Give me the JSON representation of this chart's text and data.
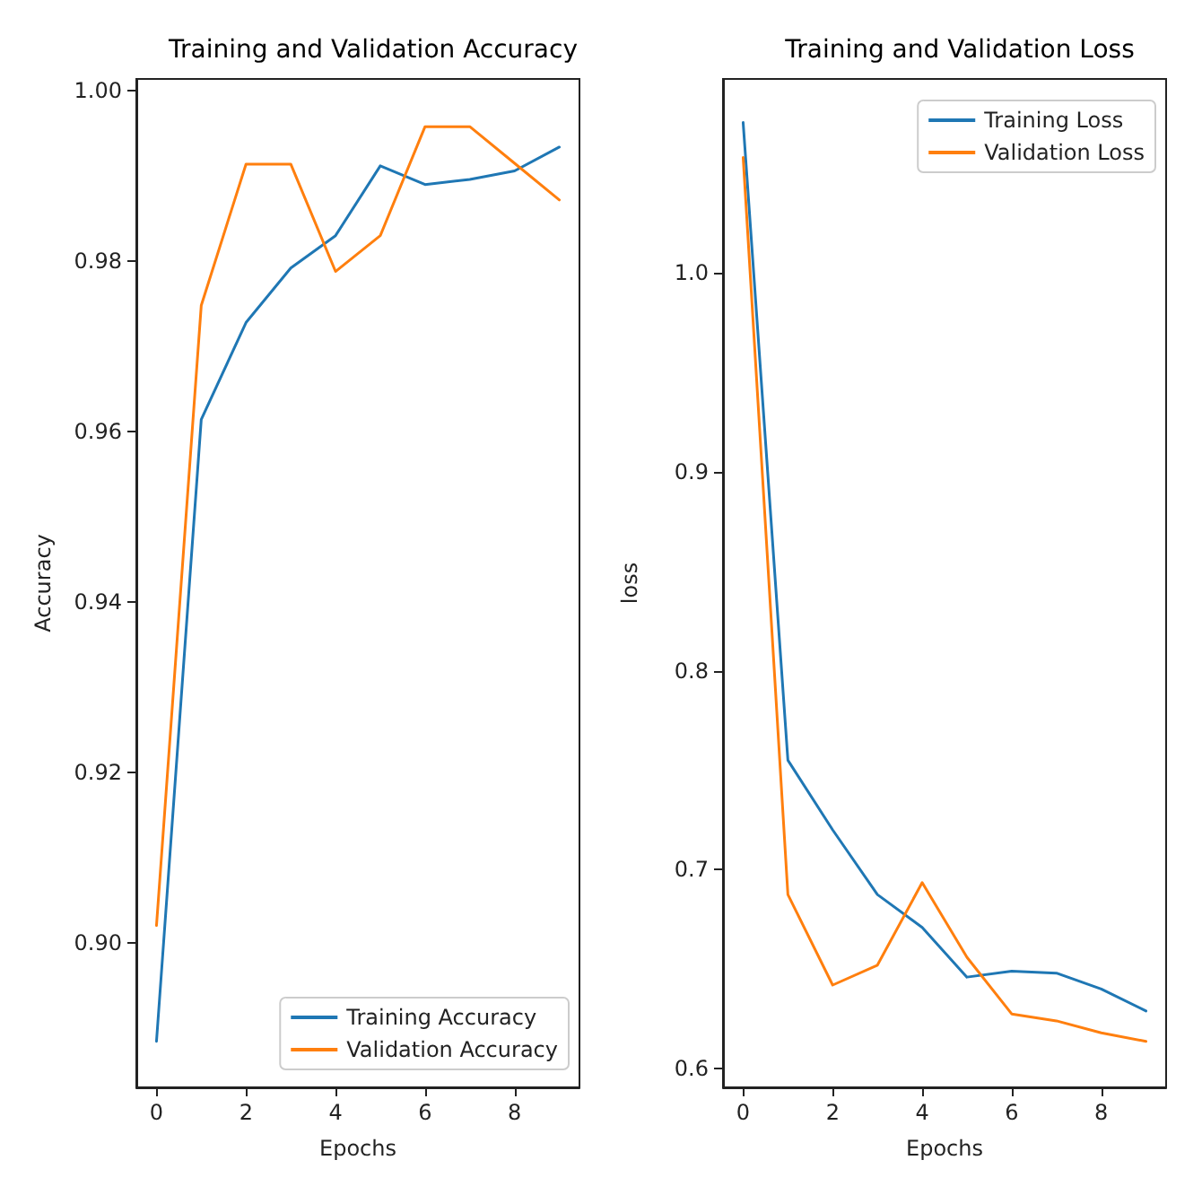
{
  "chart_data": [
    {
      "type": "line",
      "title": "Training and Validation Accuracy",
      "xlabel": "Epochs",
      "ylabel": "Accuracy",
      "x": [
        0,
        1,
        2,
        3,
        4,
        5,
        6,
        7,
        8,
        9
      ],
      "series": [
        {
          "name": "Training Accuracy",
          "color": "#1f77b4",
          "values": [
            0.8884,
            0.9614,
            0.9728,
            0.9792,
            0.983,
            0.9912,
            0.989,
            0.9896,
            0.9906,
            0.9934
          ]
        },
        {
          "name": "Validation Accuracy",
          "color": "#ff7f0e",
          "values": [
            0.902,
            0.9748,
            0.9914,
            0.9914,
            0.9788,
            0.983,
            0.9958,
            0.9958,
            0.9915,
            0.9872
          ]
        }
      ],
      "xlim": [
        -0.45,
        9.45
      ],
      "xticks": [
        0,
        2,
        4,
        6,
        8
      ],
      "ylim": [
        0.883,
        1.0014
      ],
      "yticks": [
        {
          "value": 0.9,
          "label": "0.90"
        },
        {
          "value": 0.92,
          "label": "0.92"
        },
        {
          "value": 0.94,
          "label": "0.94"
        },
        {
          "value": 0.96,
          "label": "0.96"
        },
        {
          "value": 0.98,
          "label": "0.98"
        },
        {
          "value": 1.0,
          "label": "1.00"
        }
      ],
      "grid": false,
      "legend": "bottom right",
      "marker": "none",
      "line_style": "solid"
    },
    {
      "type": "line",
      "title": "Training and Validation Loss",
      "xlabel": "Epochs",
      "ylabel": "loss",
      "x": [
        0,
        1,
        2,
        3,
        4,
        5,
        6,
        7,
        8,
        9
      ],
      "series": [
        {
          "name": "Training Loss",
          "color": "#1f77b4",
          "values": [
            1.0755,
            0.755,
            0.72,
            0.6875,
            0.671,
            0.646,
            0.649,
            0.648,
            0.64,
            0.629
          ]
        },
        {
          "name": "Validation Loss",
          "color": "#ff7f0e",
          "values": [
            1.058,
            0.6875,
            0.642,
            0.652,
            0.6935,
            0.656,
            0.6275,
            0.624,
            0.618,
            0.6137
          ]
        }
      ],
      "xlim": [
        -0.45,
        9.45
      ],
      "xticks": [
        0,
        2,
        4,
        6,
        8
      ],
      "ylim": [
        0.5906,
        1.0974
      ],
      "yticks": [
        {
          "value": 0.6,
          "label": "0.6"
        },
        {
          "value": 0.7,
          "label": "0.7"
        },
        {
          "value": 0.8,
          "label": "0.8"
        },
        {
          "value": 0.9,
          "label": "0.9"
        },
        {
          "value": 1.0,
          "label": "1.0"
        }
      ],
      "grid": false,
      "legend": "top right",
      "marker": "none",
      "line_style": "solid"
    }
  ]
}
